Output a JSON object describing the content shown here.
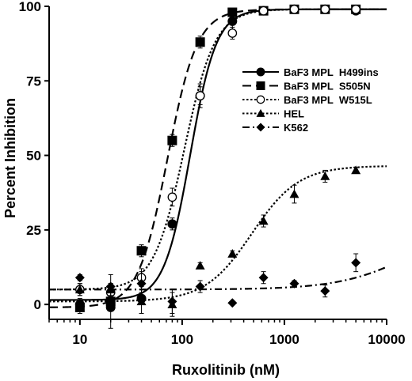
{
  "chart_data": {
    "type": "scatter",
    "xlabel": "Ruxolitinib (nM)",
    "ylabel": "Percent Inhibition",
    "xscale": "log",
    "xlim": [
      5,
      10000
    ],
    "ylim": [
      -5,
      100
    ],
    "xticks": [
      10,
      100,
      1000,
      10000
    ],
    "xtick_labels": [
      "10",
      "100",
      "1000",
      "10000"
    ],
    "yticks": [
      0,
      25,
      50,
      75,
      100
    ],
    "ytick_labels": [
      "0",
      "25",
      "50",
      "75",
      "100"
    ],
    "legend_position": "right",
    "series": [
      {
        "name": "BaF3 MPL  H499ins",
        "marker": "circle-filled",
        "line": "solid",
        "points": [
          {
            "x": 10,
            "y": 0,
            "err": 2
          },
          {
            "x": 20,
            "y": -1,
            "err": 7
          },
          {
            "x": 40,
            "y": 2,
            "err": 2
          },
          {
            "x": 80,
            "y": 27,
            "err": 2
          },
          {
            "x": 150,
            "y": 70,
            "err": 4
          },
          {
            "x": 310,
            "y": 95,
            "err": 3
          },
          {
            "x": 625,
            "y": 98.5,
            "err": 1
          },
          {
            "x": 1250,
            "y": 99,
            "err": 1
          },
          {
            "x": 2500,
            "y": 99,
            "err": 1
          },
          {
            "x": 5000,
            "y": 98.5,
            "err": 1
          }
        ],
        "fit": {
          "bottom": 1.5,
          "top": 99,
          "ec50": 120,
          "hill": 3.4
        }
      },
      {
        "name": "BaF3 MPL  S505N",
        "marker": "square-filled",
        "line": "dashed",
        "points": [
          {
            "x": 10,
            "y": -1,
            "err": 2
          },
          {
            "x": 20,
            "y": 1,
            "err": 3
          },
          {
            "x": 40,
            "y": 18,
            "err": 2
          },
          {
            "x": 80,
            "y": 55,
            "err": 2
          },
          {
            "x": 150,
            "y": 88,
            "err": 2
          },
          {
            "x": 310,
            "y": 98,
            "err": 1
          },
          {
            "x": 625,
            "y": 98.5,
            "err": 1
          },
          {
            "x": 1250,
            "y": 99,
            "err": 1
          },
          {
            "x": 2500,
            "y": 99,
            "err": 1
          },
          {
            "x": 5000,
            "y": 99,
            "err": 1
          }
        ],
        "fit": {
          "bottom": -1,
          "top": 99,
          "ec50": 72,
          "hill": 3.0
        }
      },
      {
        "name": "BaF3 MPL  W515L",
        "marker": "circle-open",
        "line": "dotted",
        "points": [
          {
            "x": 10,
            "y": 5,
            "err": 2
          },
          {
            "x": 20,
            "y": 4,
            "err": 3
          },
          {
            "x": 40,
            "y": 9,
            "err": 3
          },
          {
            "x": 80,
            "y": 36,
            "err": 3
          },
          {
            "x": 150,
            "y": 70,
            "err": 3
          },
          {
            "x": 310,
            "y": 91,
            "err": 2
          },
          {
            "x": 625,
            "y": 98.5,
            "err": 1
          },
          {
            "x": 1250,
            "y": 99,
            "err": 1
          },
          {
            "x": 2500,
            "y": 99,
            "err": 1
          },
          {
            "x": 5000,
            "y": 99,
            "err": 1
          }
        ],
        "fit": {
          "bottom": 5,
          "top": 99,
          "ec50": 105,
          "hill": 2.9
        }
      },
      {
        "name": "HEL",
        "marker": "triangle-filled",
        "line": "dotted",
        "points": [
          {
            "x": 10,
            "y": 5,
            "err": 2
          },
          {
            "x": 20,
            "y": 5,
            "err": 2
          },
          {
            "x": 40,
            "y": 1,
            "err": 4
          },
          {
            "x": 80,
            "y": 0,
            "err": 4
          },
          {
            "x": 150,
            "y": 13,
            "err": 1
          },
          {
            "x": 310,
            "y": 17,
            "err": 1
          },
          {
            "x": 625,
            "y": 28,
            "err": 2
          },
          {
            "x": 1250,
            "y": 37,
            "err": 3
          },
          {
            "x": 2500,
            "y": 43,
            "err": 2
          },
          {
            "x": 5000,
            "y": 45,
            "err": 1
          }
        ],
        "fit": {
          "bottom": 1,
          "top": 46.5,
          "ec50": 480,
          "hill": 1.9
        }
      },
      {
        "name": "K562",
        "marker": "diamond-filled",
        "line": "dashdot",
        "points": [
          {
            "x": 10,
            "y": 9,
            "err": 1
          },
          {
            "x": 20,
            "y": 6,
            "err": 4
          },
          {
            "x": 40,
            "y": 7,
            "err": 4
          },
          {
            "x": 80,
            "y": 1,
            "err": 4
          },
          {
            "x": 150,
            "y": 6,
            "err": 2
          },
          {
            "x": 310,
            "y": 0.5,
            "err": 0
          },
          {
            "x": 625,
            "y": 9,
            "err": 2
          },
          {
            "x": 1250,
            "y": 7,
            "err": 1
          },
          {
            "x": 2500,
            "y": 4.5,
            "err": 2
          },
          {
            "x": 5000,
            "y": 14,
            "err": 3
          }
        ],
        "fit": {
          "bottom": 5,
          "top": 30,
          "ec50": 20000,
          "hill": 1.2
        }
      }
    ]
  },
  "colors": {
    "ink": "#000000",
    "background": "#ffffff"
  }
}
